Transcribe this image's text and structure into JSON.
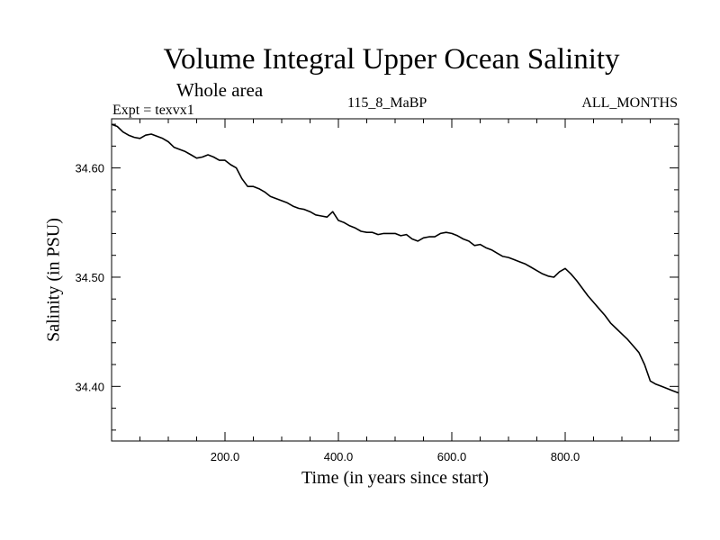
{
  "chart_data": {
    "type": "line",
    "title": "Volume Integral Upper Ocean Salinity",
    "subtitle": "Whole area",
    "left_label": "Expt = texvx1",
    "center_label": "115_8_MaBP",
    "right_label": "ALL_MONTHS",
    "xlabel": "Time (in years since start)",
    "ylabel": "Salinity (in PSU)",
    "xlim": [
      0,
      1000
    ],
    "ylim": [
      34.35,
      34.645
    ],
    "xticks": [
      200,
      400,
      600,
      800
    ],
    "xtick_labels": [
      "200.0",
      "400.0",
      "600.0",
      "800.0"
    ],
    "yticks": [
      34.4,
      34.5,
      34.6
    ],
    "ytick_labels": [
      "34.40",
      "34.50",
      "34.60"
    ],
    "series": [
      {
        "name": "Salinity",
        "x": [
          0,
          10,
          20,
          30,
          40,
          50,
          60,
          70,
          80,
          90,
          100,
          110,
          120,
          130,
          140,
          150,
          160,
          170,
          180,
          190,
          200,
          210,
          220,
          230,
          240,
          250,
          260,
          270,
          280,
          290,
          300,
          310,
          320,
          330,
          340,
          350,
          360,
          370,
          380,
          390,
          400,
          410,
          420,
          430,
          440,
          450,
          460,
          470,
          480,
          490,
          500,
          510,
          520,
          530,
          540,
          550,
          560,
          570,
          580,
          590,
          600,
          610,
          620,
          630,
          640,
          650,
          660,
          670,
          680,
          690,
          700,
          710,
          720,
          730,
          740,
          750,
          760,
          770,
          780,
          790,
          800,
          810,
          820,
          830,
          840,
          850,
          860,
          870,
          880,
          890,
          900,
          910,
          920,
          930,
          940,
          950,
          960,
          970,
          980,
          990,
          1000
        ],
        "values": [
          34.64,
          34.638,
          34.633,
          34.63,
          34.628,
          34.627,
          34.63,
          34.631,
          34.629,
          34.627,
          34.624,
          34.619,
          34.617,
          34.615,
          34.612,
          34.609,
          34.61,
          34.612,
          34.61,
          34.607,
          34.607,
          34.603,
          34.6,
          34.59,
          34.583,
          34.583,
          34.581,
          34.578,
          34.574,
          34.572,
          34.57,
          34.568,
          34.565,
          34.563,
          34.562,
          34.56,
          34.557,
          34.556,
          34.555,
          34.56,
          34.552,
          34.55,
          34.547,
          34.545,
          34.542,
          34.541,
          34.541,
          34.539,
          34.54,
          34.54,
          34.54,
          34.538,
          34.539,
          34.535,
          34.533,
          34.536,
          34.537,
          34.537,
          34.54,
          34.541,
          34.54,
          34.538,
          34.535,
          34.533,
          34.529,
          34.53,
          34.527,
          34.525,
          34.522,
          34.519,
          34.518,
          34.516,
          34.514,
          34.512,
          34.509,
          34.506,
          34.503,
          34.501,
          34.5,
          34.505,
          34.508,
          34.503,
          34.497,
          34.49,
          34.483,
          34.477,
          34.471,
          34.465,
          34.458,
          34.453,
          34.448,
          34.443,
          34.437,
          34.431,
          34.42,
          34.405,
          34.402,
          34.4,
          34.398,
          34.396,
          34.394
        ]
      }
    ]
  }
}
